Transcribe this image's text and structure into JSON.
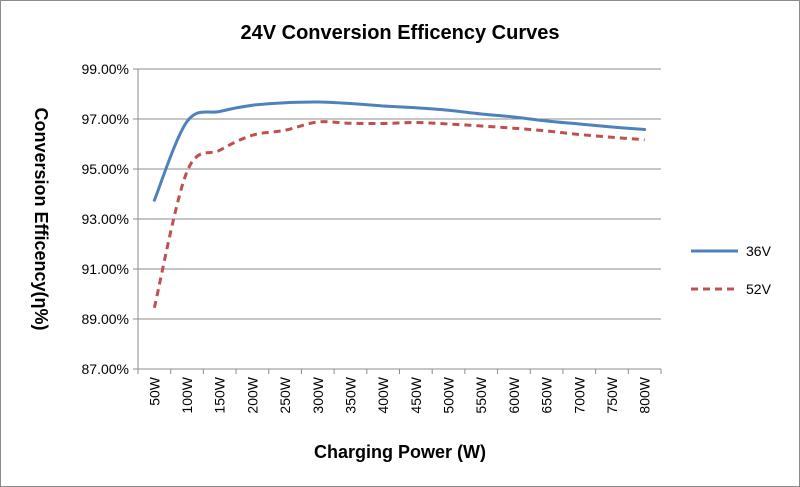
{
  "chart_data": {
    "type": "line",
    "title": "24V  Conversion Efficency Curves",
    "xlabel": "Charging  Power  (W)",
    "ylabel": "Conversion Efficency(η%)",
    "categories": [
      "50W",
      "100W",
      "150W",
      "200W",
      "250W",
      "300W",
      "350W",
      "400W",
      "450W",
      "500W",
      "550W",
      "600W",
      "650W",
      "700W",
      "750W",
      "800W"
    ],
    "ylim": [
      87.0,
      99.0
    ],
    "yticks": [
      87.0,
      89.0,
      91.0,
      93.0,
      95.0,
      97.0,
      99.0
    ],
    "ytick_labels": [
      "87.00%",
      "89.00%",
      "91.00%",
      "93.00%",
      "95.00%",
      "97.00%",
      "99.00%"
    ],
    "grid": "horizontal",
    "legend_position": "right",
    "series": [
      {
        "name": "36V",
        "color": "#4f81bd",
        "style": "solid",
        "values": [
          93.75,
          96.9,
          97.3,
          97.55,
          97.65,
          97.68,
          97.62,
          97.52,
          97.45,
          97.35,
          97.2,
          97.08,
          96.92,
          96.8,
          96.68,
          96.58
        ]
      },
      {
        "name": "52V",
        "color": "#c0504d",
        "style": "dashed",
        "values": [
          89.45,
          94.9,
          95.75,
          96.35,
          96.55,
          96.88,
          96.83,
          96.82,
          96.86,
          96.8,
          96.72,
          96.63,
          96.52,
          96.38,
          96.27,
          96.17
        ]
      }
    ]
  }
}
